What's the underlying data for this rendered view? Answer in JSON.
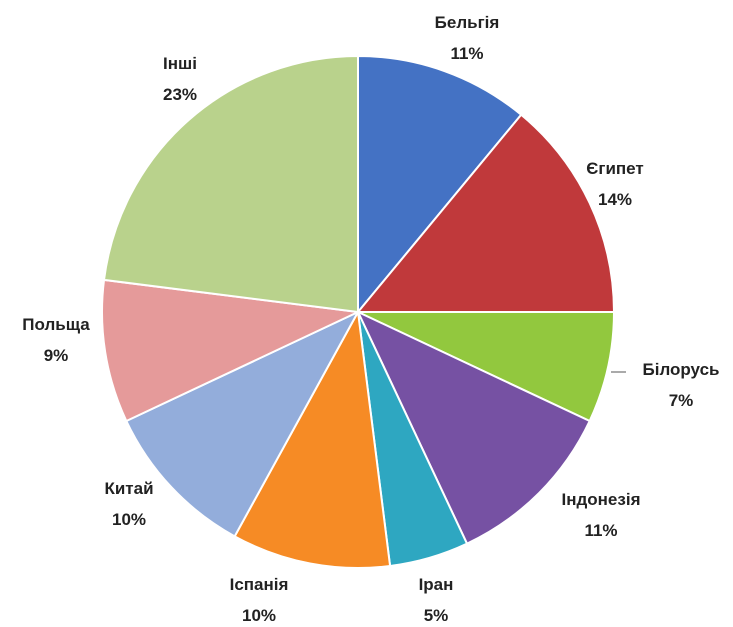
{
  "chart_data": {
    "type": "pie",
    "title": "",
    "slices": [
      {
        "label": "Бельгія",
        "value": 11,
        "value_label": "11%",
        "color": "#4472C4"
      },
      {
        "label": "Єгипет",
        "value": 14,
        "value_label": "14%",
        "color": "#C0393B"
      },
      {
        "label": "Білорусь",
        "value": 7,
        "value_label": "7%",
        "color": "#92C83E"
      },
      {
        "label": "Індонезія",
        "value": 11,
        "value_label": "11%",
        "color": "#7651A3"
      },
      {
        "label": "Іран",
        "value": 5,
        "value_label": "5%",
        "color": "#2EA7C1"
      },
      {
        "label": "Іспанія",
        "value": 10,
        "value_label": "10%",
        "color": "#F68B25"
      },
      {
        "label": "Китай",
        "value": 10,
        "value_label": "10%",
        "color": "#93ADDB"
      },
      {
        "label": "Польща",
        "value": 9,
        "value_label": "9%",
        "color": "#E59A9A"
      },
      {
        "label": "Інші",
        "value": 23,
        "value_label": "23%",
        "color": "#B9D28C"
      }
    ],
    "start": "12 o'clock",
    "direction": "clockwise",
    "legend": "none"
  }
}
